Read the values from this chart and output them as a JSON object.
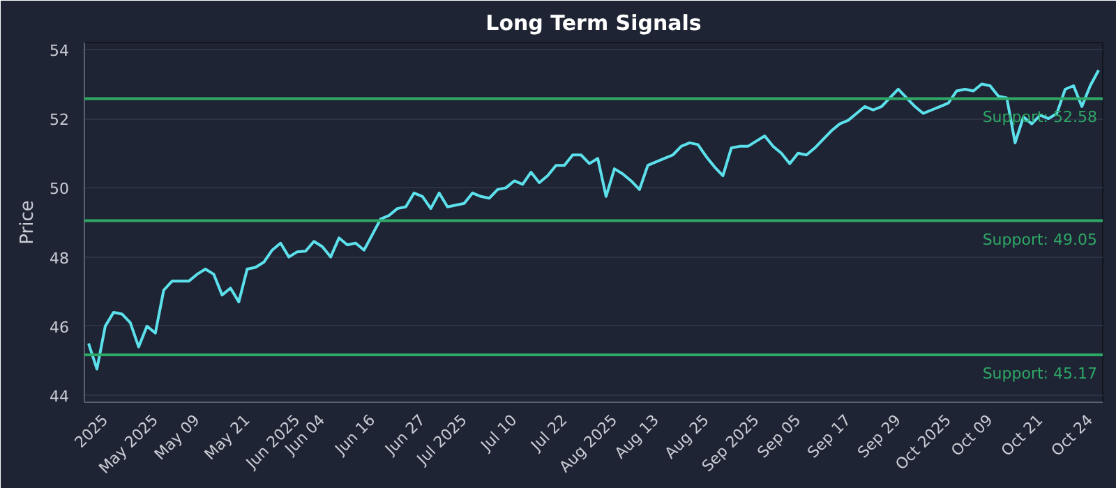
{
  "chart_data": {
    "type": "line",
    "title": "Long Term Signals",
    "ylabel": "Price",
    "categories": [
      null,
      null,
      "2025",
      null,
      null,
      null,
      null,
      null,
      "May 2025",
      null,
      null,
      null,
      null,
      "May 09",
      null,
      null,
      null,
      null,
      null,
      "May 21",
      null,
      null,
      null,
      null,
      null,
      "Jun 2025",
      null,
      null,
      "Jun 04",
      null,
      null,
      null,
      null,
      null,
      "Jun 16",
      null,
      null,
      null,
      null,
      null,
      "Jun 27",
      null,
      null,
      null,
      null,
      "Jul 2025",
      null,
      null,
      null,
      null,
      null,
      "Jul 10",
      null,
      null,
      null,
      null,
      null,
      "Jul 22",
      null,
      null,
      null,
      null,
      null,
      "Aug 2025",
      null,
      null,
      null,
      null,
      "Aug 13",
      null,
      null,
      null,
      null,
      null,
      "Aug 25",
      null,
      null,
      null,
      null,
      null,
      "Sep 2025",
      null,
      null,
      null,
      null,
      "Sep 05",
      null,
      null,
      null,
      null,
      null,
      "Sep 17",
      null,
      null,
      null,
      null,
      null,
      "Sep 29",
      null,
      null,
      null,
      null,
      null,
      "Oct 2025",
      null,
      null,
      null,
      null,
      "Oct 09",
      null,
      null,
      null,
      null,
      null,
      "Oct 21",
      null,
      null,
      null,
      null,
      null,
      "Oct 24",
      null
    ],
    "series": [
      {
        "color": "#5ce1ec",
        "values": [
          45.5,
          44.76,
          46.0,
          46.4,
          46.35,
          46.1,
          45.4,
          46.0,
          45.8,
          47.04,
          47.3,
          47.3,
          47.3,
          47.5,
          47.65,
          47.5,
          46.9,
          47.1,
          46.7,
          47.65,
          47.7,
          47.85,
          48.2,
          48.4,
          48.0,
          48.15,
          48.17,
          48.45,
          48.3,
          48.0,
          48.55,
          48.35,
          48.4,
          48.2,
          48.65,
          49.1,
          49.2,
          49.4,
          49.45,
          49.85,
          49.75,
          49.4,
          49.85,
          49.45,
          49.5,
          49.55,
          49.85,
          49.75,
          49.7,
          49.95,
          50.0,
          50.2,
          50.1,
          50.45,
          50.15,
          50.35,
          50.65,
          50.65,
          50.95,
          50.95,
          50.7,
          50.85,
          49.75,
          50.55,
          50.4,
          50.2,
          49.95,
          50.65,
          50.75,
          50.85,
          50.95,
          51.2,
          51.3,
          51.25,
          50.9,
          50.6,
          50.35,
          51.15,
          51.2,
          51.2,
          51.35,
          51.5,
          51.2,
          51.0,
          50.7,
          51.0,
          50.95,
          51.15,
          51.4,
          51.65,
          51.85,
          51.95,
          52.15,
          52.35,
          52.25,
          52.35,
          52.6,
          52.85,
          52.6,
          52.35,
          52.15,
          52.25,
          52.35,
          52.45,
          52.8,
          52.85,
          52.8,
          53.0,
          52.95,
          52.65,
          52.6,
          51.3,
          52.05,
          51.85,
          52.1,
          52.0,
          52.15,
          52.85,
          52.95,
          52.35,
          52.95,
          53.4
        ]
      }
    ],
    "ylim": [
      43.8,
      54.2
    ],
    "yticks": [
      44,
      46,
      48,
      50,
      52,
      54
    ],
    "grid": "y",
    "marker": "none",
    "line_style": "solid",
    "ref_lines": [
      {
        "axis": "y",
        "value": 52.58,
        "label": "Support: 52.58",
        "color": "#2ea866"
      },
      {
        "axis": "y",
        "value": 49.05,
        "label": "Support: 49.05",
        "color": "#2ea866"
      },
      {
        "axis": "y",
        "value": 45.17,
        "label": "Support: 45.17",
        "color": "#2ea866"
      }
    ]
  }
}
